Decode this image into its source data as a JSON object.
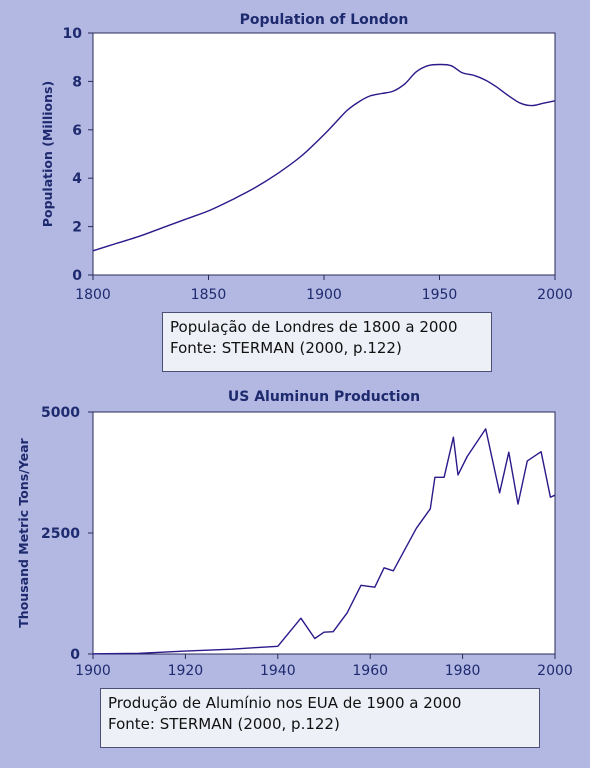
{
  "chart_data": [
    {
      "type": "line",
      "title": "Population of London",
      "ylabel": "Population (Millions)",
      "xlabel": "",
      "xlim": [
        1800,
        2000
      ],
      "ylim": [
        0,
        10
      ],
      "xticks": [
        "1800",
        "1850",
        "1900",
        "1950",
        "2000"
      ],
      "yticks": [
        "0",
        "2",
        "4",
        "6",
        "8",
        "10"
      ],
      "grid": false,
      "line_color": "#2a1a8a",
      "series": [
        {
          "x": [
            1800,
            1810,
            1820,
            1830,
            1840,
            1850,
            1860,
            1870,
            1880,
            1890,
            1900,
            1905,
            1910,
            1915,
            1920,
            1925,
            1930,
            1935,
            1940,
            1945,
            1950,
            1955,
            1960,
            1965,
            1970,
            1975,
            1980,
            1985,
            1990,
            1995,
            2000
          ],
          "y": [
            1.0,
            1.3,
            1.6,
            1.95,
            2.3,
            2.65,
            3.1,
            3.6,
            4.2,
            4.9,
            5.8,
            6.3,
            6.8,
            7.15,
            7.4,
            7.5,
            7.6,
            7.9,
            8.4,
            8.65,
            8.7,
            8.65,
            8.35,
            8.25,
            8.05,
            7.75,
            7.4,
            7.1,
            7.0,
            7.1,
            7.2
          ]
        }
      ]
    },
    {
      "type": "line",
      "title": "US Aluminun Production",
      "ylabel": "Thousand Metric Tons/Year",
      "xlabel": "",
      "xlim": [
        1900,
        2000
      ],
      "ylim": [
        0,
        5000
      ],
      "xticks": [
        "1900",
        "1920",
        "1940",
        "1960",
        "1980",
        "2000"
      ],
      "yticks": [
        "0",
        "2500",
        "5000"
      ],
      "grid": false,
      "line_color": "#2a1a8a",
      "series": [
        {
          "x": [
            1900,
            1910,
            1920,
            1930,
            1935,
            1940,
            1945,
            1948,
            1950,
            1952,
            1955,
            1958,
            1961,
            1963,
            1965,
            1970,
            1973,
            1974,
            1976,
            1978,
            1979,
            1981,
            1985,
            1988,
            1990,
            1992,
            1994,
            1997,
            1999,
            2000
          ],
          "y": [
            5,
            15,
            60,
            100,
            130,
            160,
            740,
            320,
            450,
            460,
            850,
            1420,
            1380,
            1780,
            1720,
            2600,
            3000,
            3650,
            3650,
            4480,
            3700,
            4080,
            4650,
            3330,
            4170,
            3100,
            3990,
            4180,
            3240,
            3280
          ]
        }
      ]
    }
  ],
  "captions": [
    {
      "line1": "População de Londres de 1800 a 2000",
      "line2": "Fonte: STERMAN (2000, p.122)"
    },
    {
      "line1": "Produção de Alumínio nos EUA de 1900 a 2000",
      "line2": "Fonte: STERMAN (2000, p.122)"
    }
  ]
}
